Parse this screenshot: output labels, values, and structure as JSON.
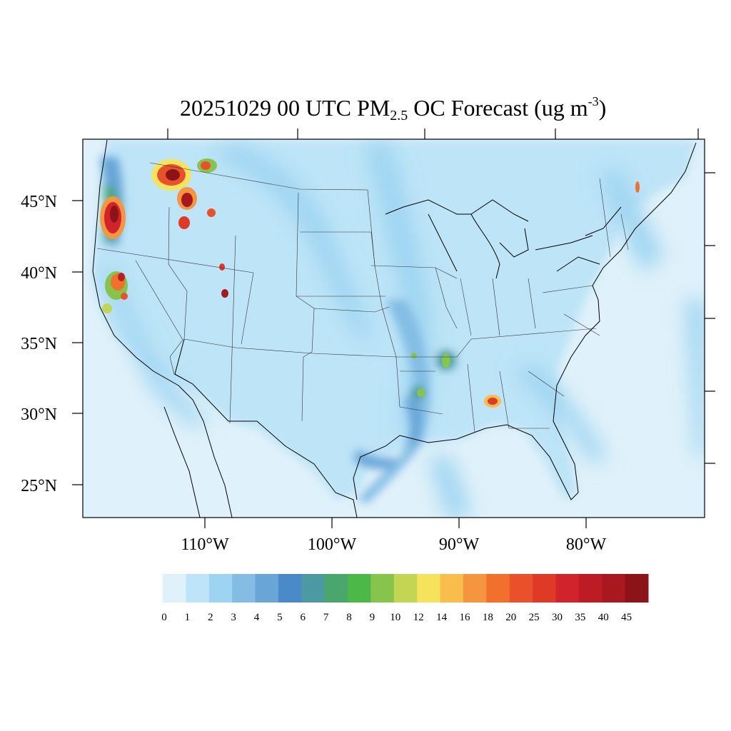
{
  "title": {
    "date_time": "20251029 00 UTC",
    "pm": "PM",
    "pm_sub": "2.5",
    "rest": " OC Forecast (ug m",
    "exp": "-3",
    "close": ")"
  },
  "map": {
    "lat_labels": [
      "45°N",
      "40°N",
      "35°N",
      "30°N",
      "25°N"
    ],
    "lon_labels": [
      "110°W",
      "100°W",
      "90°W",
      "80°W"
    ],
    "ocean_color": "#dff1fa",
    "hotspots": [
      {
        "region": "Washington / Oregon Cascades",
        "level": 45
      },
      {
        "region": "Northern Idaho / Montana",
        "level": 45
      },
      {
        "region": "Northern California",
        "level": 35
      },
      {
        "region": "Utah",
        "level": 40
      },
      {
        "region": "Alabama",
        "level": 20
      },
      {
        "region": "Mississippi Valley",
        "level": 10
      }
    ]
  },
  "colorbar": {
    "labels": [
      "0",
      "1",
      "2",
      "3",
      "4",
      "5",
      "6",
      "7",
      "8",
      "9",
      "10",
      "12",
      "14",
      "16",
      "18",
      "20",
      "25",
      "30",
      "35",
      "40",
      "45"
    ],
    "colors": [
      "#dff1fa",
      "#bde4f7",
      "#9dd4f2",
      "#83bde4",
      "#68a6d8",
      "#4a8ac9",
      "#4b9aa1",
      "#49a66d",
      "#4cb848",
      "#87c44c",
      "#c3d654",
      "#f5e35c",
      "#f8bd4b",
      "#f69540",
      "#f0702c",
      "#e8512a",
      "#df3a26",
      "#d0232a",
      "#bd1c25",
      "#a9181e",
      "#8c1418"
    ]
  }
}
